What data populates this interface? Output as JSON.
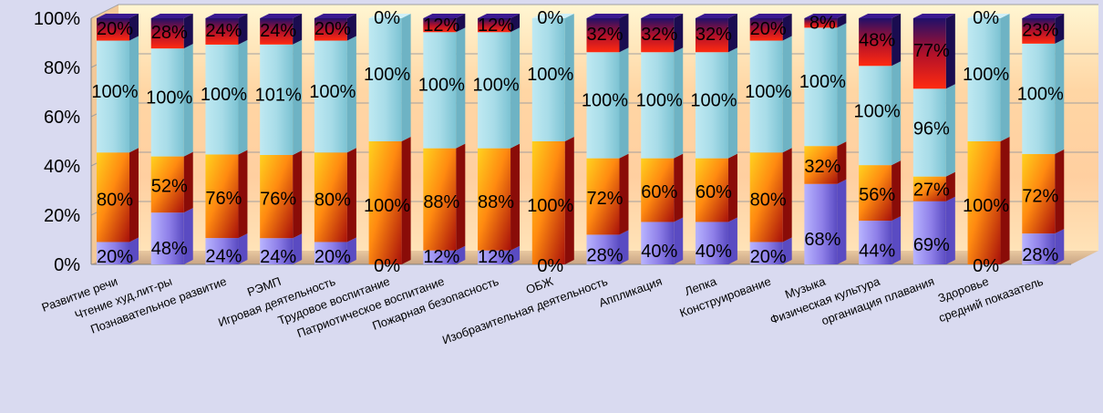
{
  "chart_data": {
    "type": "bar",
    "stacked": "percent",
    "categories": [
      "Развитие речи",
      "Чтение худ.лит-ры",
      "Познавательное развитие",
      "РЭМП",
      "Игровая деятельность",
      "Трудовое воспитание",
      "Патриотическое воспитание",
      "Пожарная безопасность",
      "ОБЖ",
      "Изобразительная деятельность",
      "Аппликация",
      "Лепка",
      "Конструирование",
      "Музыка",
      "Физическая культура",
      "органиация плавания",
      "Здоровье",
      "средний показатель"
    ],
    "series": [
      {
        "color": "#8f7ee8",
        "values": [
          20,
          48,
          24,
          24,
          20,
          0,
          12,
          12,
          0,
          28,
          40,
          40,
          20,
          68,
          44,
          69,
          0,
          28
        ]
      },
      {
        "color": "#e0401a",
        "values": [
          80,
          52,
          76,
          76,
          80,
          100,
          88,
          88,
          100,
          72,
          60,
          60,
          80,
          32,
          56,
          27,
          100,
          72
        ]
      },
      {
        "color": "#9fd8e6",
        "values": [
          100,
          100,
          100,
          101,
          100,
          100,
          100,
          100,
          100,
          100,
          100,
          100,
          100,
          100,
          100,
          96,
          100,
          100
        ]
      },
      {
        "color": "#c8261a",
        "values": [
          20,
          28,
          24,
          24,
          20,
          0,
          12,
          12,
          0,
          32,
          32,
          32,
          20,
          8,
          48,
          77,
          0,
          23
        ]
      }
    ],
    "yticks": [
      "0%",
      "20%",
      "40%",
      "60%",
      "80%",
      "100%"
    ],
    "ylim": [
      0,
      100
    ],
    "grid": true,
    "legend": "none"
  }
}
